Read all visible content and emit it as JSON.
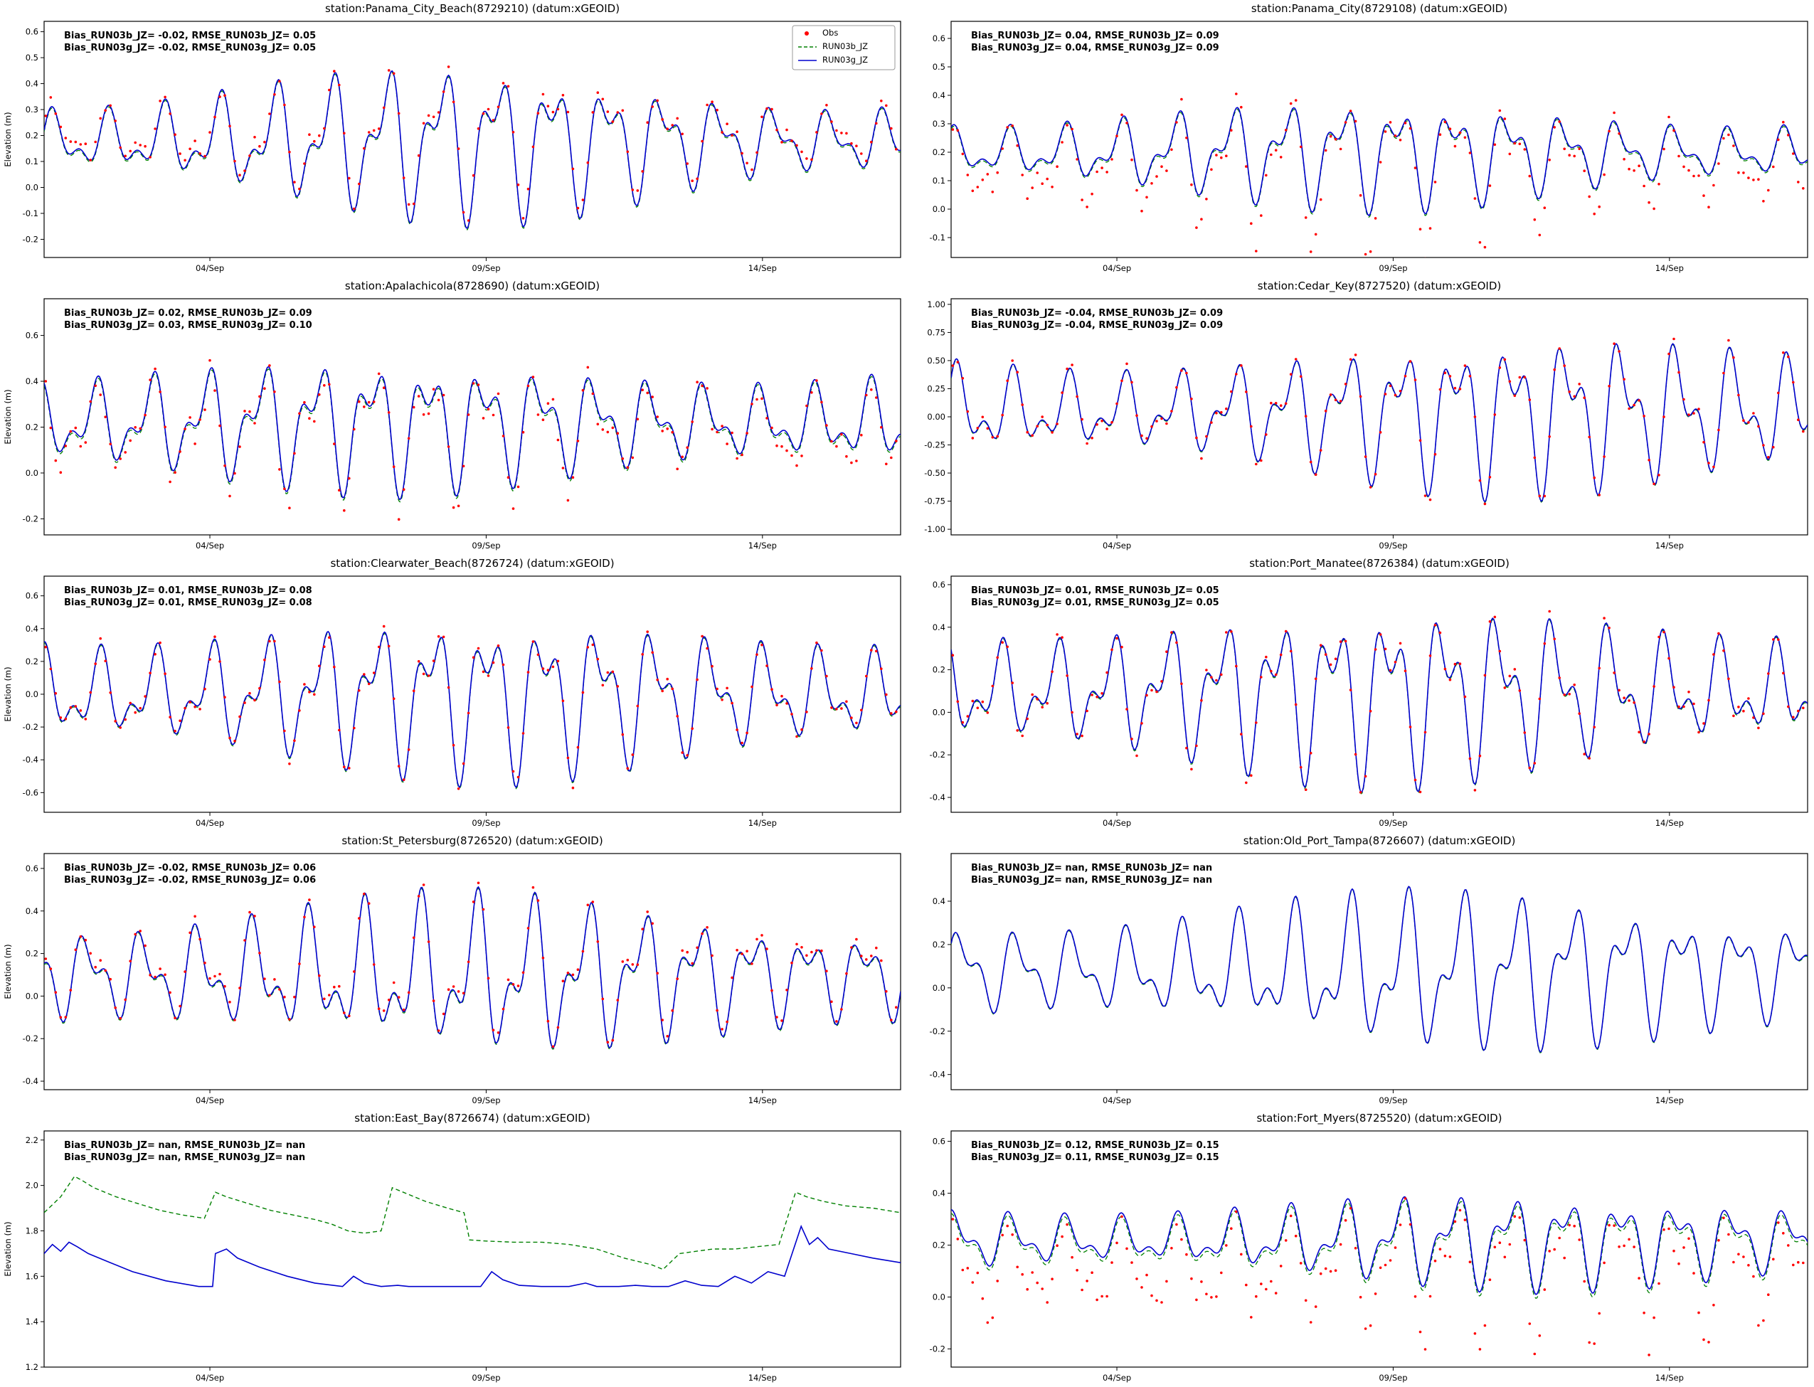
{
  "figure": {
    "background": "#ffffff",
    "rows": 5,
    "cols": 2
  },
  "colors": {
    "obs": "#ff0000",
    "run03b": "#008000",
    "run03g": "#0000cd",
    "axis": "#000000",
    "legend_border": "#999999"
  },
  "ylabel": "Elevation (m)",
  "x_axis": {
    "tick_labels": [
      "04/Sep",
      "09/Sep",
      "14/Sep"
    ],
    "tick_t": [
      3,
      8,
      13
    ],
    "t_range": [
      0,
      15.5
    ]
  },
  "legend": {
    "items": [
      {
        "label": "Obs",
        "marker": "dot",
        "color": "obs"
      },
      {
        "label": "RUN03b_JZ",
        "marker": "dashed",
        "color": "run03b"
      },
      {
        "label": "RUN03g_JZ",
        "marker": "solid",
        "color": "run03g"
      }
    ]
  },
  "chart_data": {
    "type": "line",
    "x_tick_labels": [
      "04/Sep",
      "09/Sep",
      "14/Sep"
    ],
    "subplots": [
      {
        "station": "Panama_City_Beach",
        "station_id": "8729210",
        "title": "station:Panama_City_Beach(8729210) (datum:xGEOID)",
        "annotation_lines": [
          "Bias_RUN03b_JZ= -0.02, RMSE_RUN03b_JZ=  0.05",
          "Bias_RUN03g_JZ= -0.02, RMSE_RUN03g_JZ=  0.05"
        ],
        "bias_RUN03b_JZ": -0.02,
        "rmse_RUN03b_JZ": 0.05,
        "bias_RUN03g_JZ": -0.02,
        "rmse_RUN03g_JZ": 0.05,
        "ylim": [
          -0.27,
          0.64
        ],
        "ytick_vals": [
          0.6,
          0.5,
          0.4,
          0.3,
          0.2,
          0.1,
          0.0,
          -0.1,
          -0.2
        ],
        "ydec": 1,
        "ylabel_shown": true,
        "legend_shown": true,
        "has_obs": true,
        "series": {
          "mean": 0.18,
          "a1": 0.15,
          "ph1": 0.5,
          "a2": 0.09,
          "ph2": 0.0,
          "m": 0.45,
          "mt": 7.5,
          "grow": 0,
          "obs": {
            "off": 0.02,
            "scale": 0.95,
            "noise": 0.03,
            "seed": 11
          },
          "green_off": -0.006
        }
      },
      {
        "station": "Panama_City",
        "station_id": "8729108",
        "title": "station:Panama_City(8729108) (datum:xGEOID)",
        "annotation_lines": [
          "Bias_RUN03b_JZ=  0.04, RMSE_RUN03b_JZ=  0.09",
          "Bias_RUN03g_JZ=  0.04, RMSE_RUN03g_JZ=  0.09"
        ],
        "bias_RUN03b_JZ": 0.04,
        "rmse_RUN03b_JZ": 0.09,
        "bias_RUN03g_JZ": 0.04,
        "rmse_RUN03g_JZ": 0.09,
        "ylim": [
          -0.17,
          0.66
        ],
        "ytick_vals": [
          0.6,
          0.5,
          0.4,
          0.3,
          0.2,
          0.1,
          0.0,
          -0.1
        ],
        "ydec": 1,
        "ylabel_shown": false,
        "legend_shown": false,
        "has_obs": true,
        "series": {
          "mean": 0.2,
          "a1": 0.1,
          "ph1": 1.2,
          "a2": 0.06,
          "ph2": 1.0,
          "m": 0.4,
          "mt": 7.5,
          "grow": 0,
          "obs": {
            "off": -0.05,
            "scale": 1.5,
            "noise": 0.03,
            "seed": 22
          },
          "green_off": -0.006
        }
      },
      {
        "station": "Apalachicola",
        "station_id": "8728690",
        "title": "station:Apalachicola(8728690) (datum:xGEOID)",
        "annotation_lines": [
          "Bias_RUN03b_JZ=  0.02, RMSE_RUN03b_JZ=  0.09",
          "Bias_RUN03g_JZ=  0.03, RMSE_RUN03g_JZ=  0.10"
        ],
        "bias_RUN03b_JZ": 0.02,
        "rmse_RUN03b_JZ": 0.09,
        "bias_RUN03g_JZ": 0.03,
        "rmse_RUN03g_JZ": 0.1,
        "ylim": [
          -0.27,
          0.76
        ],
        "ytick_vals": [
          0.6,
          0.4,
          0.2,
          0.0,
          -0.2
        ],
        "ydec": 1,
        "ylabel_shown": true,
        "legend_shown": false,
        "has_obs": true,
        "series": {
          "mean": 0.22,
          "a1": 0.16,
          "ph1": 2.0,
          "a2": 0.1,
          "ph2": 2.0,
          "m": 0.3,
          "mt": 6.0,
          "grow": 0,
          "obs": {
            "off": -0.03,
            "scale": 1.1,
            "noise": 0.06,
            "seed": 33
          },
          "green_off": -0.01
        }
      },
      {
        "station": "Cedar_Key",
        "station_id": "8727520",
        "title": "station:Cedar_Key(8727520) (datum:xGEOID)",
        "annotation_lines": [
          "Bias_RUN03b_JZ= -0.04, RMSE_RUN03b_JZ=  0.09",
          "Bias_RUN03g_JZ= -0.04, RMSE_RUN03g_JZ=  0.09"
        ],
        "bias_RUN03b_JZ": -0.04,
        "rmse_RUN03b_JZ": 0.09,
        "bias_RUN03g_JZ": -0.04,
        "rmse_RUN03g_JZ": 0.09,
        "ylim": [
          -1.05,
          1.05
        ],
        "ytick_vals": [
          1.0,
          0.75,
          0.5,
          0.25,
          0.0,
          -0.25,
          -0.5,
          -0.75,
          -1.0
        ],
        "ydec": 2,
        "ylabel_shown": false,
        "legend_shown": false,
        "has_obs": true,
        "series": {
          "mean": 0.05,
          "a1": 0.36,
          "ph1": 0.8,
          "a2": 0.24,
          "ph2": 0.5,
          "m": 0.3,
          "mt": 10.0,
          "grow": 0.15,
          "obs": {
            "off": 0.0,
            "scale": 1.05,
            "noise": 0.05,
            "seed": 44
          },
          "green_off": -0.008
        }
      },
      {
        "station": "Clearwater_Beach",
        "station_id": "8726724",
        "title": "station:Clearwater_Beach(8726724) (datum:xGEOID)",
        "annotation_lines": [
          "Bias_RUN03b_JZ=  0.01, RMSE_RUN03b_JZ=  0.08",
          "Bias_RUN03g_JZ=  0.01, RMSE_RUN03g_JZ=  0.08"
        ],
        "bias_RUN03b_JZ": 0.01,
        "rmse_RUN03b_JZ": 0.08,
        "bias_RUN03g_JZ": 0.01,
        "rmse_RUN03g_JZ": 0.08,
        "ylim": [
          -0.72,
          0.72
        ],
        "ytick_vals": [
          0.6,
          0.4,
          0.2,
          0.0,
          -0.2,
          -0.4,
          -0.6
        ],
        "ydec": 1,
        "ylabel_shown": true,
        "legend_shown": false,
        "has_obs": true,
        "series": {
          "mean": 0.0,
          "a1": 0.27,
          "ph1": 1.5,
          "a2": 0.17,
          "ph2": 1.5,
          "m": 0.3,
          "mt": 8.0,
          "grow": 0,
          "obs": {
            "off": 0.0,
            "scale": 1.0,
            "noise": 0.04,
            "seed": 55
          },
          "green_off": -0.008
        }
      },
      {
        "station": "Port_Manatee",
        "station_id": "8726384",
        "title": "station:Port_Manatee(8726384) (datum:xGEOID)",
        "annotation_lines": [
          "Bias_RUN03b_JZ=  0.01, RMSE_RUN03b_JZ=  0.05",
          "Bias_RUN03g_JZ=  0.01, RMSE_RUN03g_JZ=  0.05"
        ],
        "bias_RUN03b_JZ": 0.01,
        "rmse_RUN03b_JZ": 0.05,
        "bias_RUN03g_JZ": 0.01,
        "rmse_RUN03g_JZ": 0.05,
        "ylim": [
          -0.47,
          0.64
        ],
        "ytick_vals": [
          0.6,
          0.4,
          0.2,
          0.0,
          -0.2,
          -0.4
        ],
        "ydec": 1,
        "ylabel_shown": false,
        "legend_shown": false,
        "has_obs": true,
        "series": {
          "mean": 0.1,
          "a1": 0.22,
          "ph1": 2.2,
          "a2": 0.15,
          "ph2": 2.5,
          "m": 0.3,
          "mt": 8.0,
          "grow": 0,
          "obs": {
            "off": 0.0,
            "scale": 1.05,
            "noise": 0.035,
            "seed": 66
          },
          "green_off": -0.006
        }
      },
      {
        "station": "St_Petersburg",
        "station_id": "8726520",
        "title": "station:St_Petersburg(8726520) (datum:xGEOID)",
        "annotation_lines": [
          "Bias_RUN03b_JZ= -0.02, RMSE_RUN03b_JZ=  0.06",
          "Bias_RUN03g_JZ= -0.02, RMSE_RUN03g_JZ=  0.06"
        ],
        "bias_RUN03b_JZ": -0.02,
        "rmse_RUN03b_JZ": 0.06,
        "bias_RUN03g_JZ": -0.02,
        "rmse_RUN03g_JZ": 0.06,
        "ylim": [
          -0.44,
          0.67
        ],
        "ytick_vals": [
          0.6,
          0.4,
          0.2,
          0.0,
          -0.2,
          -0.4
        ],
        "ydec": 1,
        "ylabel_shown": true,
        "legend_shown": false,
        "has_obs": true,
        "series": {
          "mean": 0.1,
          "a1": 0.2,
          "ph1": 2.9,
          "a2": 0.13,
          "ph2": 0.2,
          "m": 0.3,
          "mt": 8.0,
          "grow": 0,
          "obs": {
            "off": 0.02,
            "scale": 1.0,
            "noise": 0.03,
            "seed": 77
          },
          "green_off": -0.006
        }
      },
      {
        "station": "Old_Port_Tampa",
        "station_id": "8726607",
        "title": "station:Old_Port_Tampa(8726607) (datum:xGEOID)",
        "annotation_lines": [
          "Bias_RUN03b_JZ=   nan, RMSE_RUN03b_JZ=   nan",
          "Bias_RUN03g_JZ=   nan, RMSE_RUN03g_JZ=   nan"
        ],
        "bias_RUN03b_JZ": "nan",
        "rmse_RUN03b_JZ": "nan",
        "bias_RUN03g_JZ": "nan",
        "rmse_RUN03g_JZ": "nan",
        "ylim": [
          -0.47,
          0.62
        ],
        "ytick_vals": [
          0.4,
          0.2,
          0.0,
          -0.2,
          -0.4
        ],
        "ydec": 1,
        "ylabel_shown": false,
        "legend_shown": false,
        "has_obs": false,
        "series": {
          "mean": 0.08,
          "a1": 0.2,
          "ph1": 0.3,
          "a2": 0.12,
          "ph2": 1.2,
          "m": 0.3,
          "mt": 9.0,
          "grow": 0.1,
          "obs": {
            "off": 0,
            "scale": 1,
            "noise": 0,
            "seed": 88
          },
          "green_off": -0.004
        }
      },
      {
        "station": "East_Bay",
        "station_id": "8726674",
        "title": "station:East_Bay(8726674) (datum:xGEOID)",
        "annotation_lines": [
          "Bias_RUN03b_JZ=   nan, RMSE_RUN03b_JZ=   nan",
          "Bias_RUN03g_JZ=   nan, RMSE_RUN03g_JZ=   nan"
        ],
        "bias_RUN03b_JZ": "nan",
        "rmse_RUN03b_JZ": "nan",
        "bias_RUN03g_JZ": "nan",
        "rmse_RUN03g_JZ": "nan",
        "ylim": [
          1.2,
          2.24
        ],
        "ytick_vals": [
          2.2,
          2.0,
          1.8,
          1.6,
          1.4,
          1.2
        ],
        "ydec": 1,
        "ylabel_shown": true,
        "legend_shown": false,
        "has_obs": false,
        "explicit": true,
        "points_b": [
          [
            0,
            1.88
          ],
          [
            0.3,
            1.95
          ],
          [
            0.55,
            2.04
          ],
          [
            0.7,
            2.02
          ],
          [
            0.9,
            1.99
          ],
          [
            1.3,
            1.95
          ],
          [
            1.7,
            1.92
          ],
          [
            2.1,
            1.89
          ],
          [
            2.5,
            1.87
          ],
          [
            2.9,
            1.855
          ],
          [
            3.1,
            1.97
          ],
          [
            3.3,
            1.95
          ],
          [
            3.7,
            1.92
          ],
          [
            4.1,
            1.89
          ],
          [
            4.5,
            1.87
          ],
          [
            4.9,
            1.85
          ],
          [
            5.2,
            1.83
          ],
          [
            5.5,
            1.8
          ],
          [
            5.8,
            1.79
          ],
          [
            6.1,
            1.8
          ],
          [
            6.3,
            1.99
          ],
          [
            6.5,
            1.97
          ],
          [
            6.9,
            1.93
          ],
          [
            7.3,
            1.9
          ],
          [
            7.6,
            1.88
          ],
          [
            7.7,
            1.76
          ],
          [
            8.0,
            1.755
          ],
          [
            8.5,
            1.75
          ],
          [
            9.0,
            1.75
          ],
          [
            9.5,
            1.74
          ],
          [
            10.0,
            1.72
          ],
          [
            10.5,
            1.68
          ],
          [
            11.0,
            1.65
          ],
          [
            11.2,
            1.63
          ],
          [
            11.5,
            1.7
          ],
          [
            11.8,
            1.71
          ],
          [
            12.1,
            1.72
          ],
          [
            12.5,
            1.72
          ],
          [
            12.9,
            1.73
          ],
          [
            13.3,
            1.74
          ],
          [
            13.6,
            1.97
          ],
          [
            13.8,
            1.95
          ],
          [
            14.1,
            1.93
          ],
          [
            14.5,
            1.91
          ],
          [
            15.0,
            1.9
          ],
          [
            15.5,
            1.88
          ]
        ],
        "points_g": [
          [
            0,
            1.7
          ],
          [
            0.15,
            1.74
          ],
          [
            0.3,
            1.71
          ],
          [
            0.45,
            1.75
          ],
          [
            0.6,
            1.73
          ],
          [
            0.8,
            1.7
          ],
          [
            1.2,
            1.66
          ],
          [
            1.6,
            1.62
          ],
          [
            2.2,
            1.58
          ],
          [
            2.8,
            1.555
          ],
          [
            3.05,
            1.555
          ],
          [
            3.1,
            1.7
          ],
          [
            3.3,
            1.72
          ],
          [
            3.5,
            1.68
          ],
          [
            3.9,
            1.64
          ],
          [
            4.4,
            1.6
          ],
          [
            4.9,
            1.57
          ],
          [
            5.4,
            1.555
          ],
          [
            5.6,
            1.6
          ],
          [
            5.8,
            1.57
          ],
          [
            6.1,
            1.555
          ],
          [
            6.4,
            1.56
          ],
          [
            6.6,
            1.555
          ],
          [
            7.0,
            1.555
          ],
          [
            7.5,
            1.555
          ],
          [
            7.9,
            1.555
          ],
          [
            8.1,
            1.62
          ],
          [
            8.3,
            1.585
          ],
          [
            8.6,
            1.56
          ],
          [
            9.0,
            1.555
          ],
          [
            9.5,
            1.555
          ],
          [
            9.8,
            1.57
          ],
          [
            10.0,
            1.555
          ],
          [
            10.4,
            1.555
          ],
          [
            10.7,
            1.56
          ],
          [
            11.0,
            1.555
          ],
          [
            11.3,
            1.555
          ],
          [
            11.6,
            1.58
          ],
          [
            11.9,
            1.56
          ],
          [
            12.2,
            1.555
          ],
          [
            12.5,
            1.6
          ],
          [
            12.8,
            1.57
          ],
          [
            13.1,
            1.62
          ],
          [
            13.4,
            1.6
          ],
          [
            13.7,
            1.82
          ],
          [
            13.85,
            1.74
          ],
          [
            14.0,
            1.77
          ],
          [
            14.2,
            1.72
          ],
          [
            14.6,
            1.7
          ],
          [
            15.0,
            1.68
          ],
          [
            15.5,
            1.66
          ]
        ]
      },
      {
        "station": "Fort_Myers",
        "station_id": "8725520",
        "title": "station:Fort_Myers(8725520) (datum:xGEOID)",
        "annotation_lines": [
          "Bias_RUN03b_JZ=  0.12, RMSE_RUN03b_JZ=  0.15",
          "Bias_RUN03g_JZ=  0.11, RMSE_RUN03g_JZ=  0.15"
        ],
        "bias_RUN03b_JZ": 0.12,
        "rmse_RUN03b_JZ": 0.15,
        "bias_RUN03g_JZ": 0.11,
        "rmse_RUN03g_JZ": 0.15,
        "ylim": [
          -0.27,
          0.64
        ],
        "ytick_vals": [
          0.6,
          0.4,
          0.2,
          0.0,
          -0.2
        ],
        "ydec": 1,
        "ylabel_shown": false,
        "legend_shown": false,
        "has_obs": true,
        "series": {
          "mean": 0.22,
          "a1": 0.1,
          "ph1": 1.0,
          "a2": 0.06,
          "ph2": 2.0,
          "m": 0.3,
          "mt": 10.0,
          "grow": 0.1,
          "obs": {
            "off": -0.12,
            "scale": 1.6,
            "noise": 0.045,
            "seed": 99
          },
          "green_off": -0.015
        }
      }
    ]
  }
}
